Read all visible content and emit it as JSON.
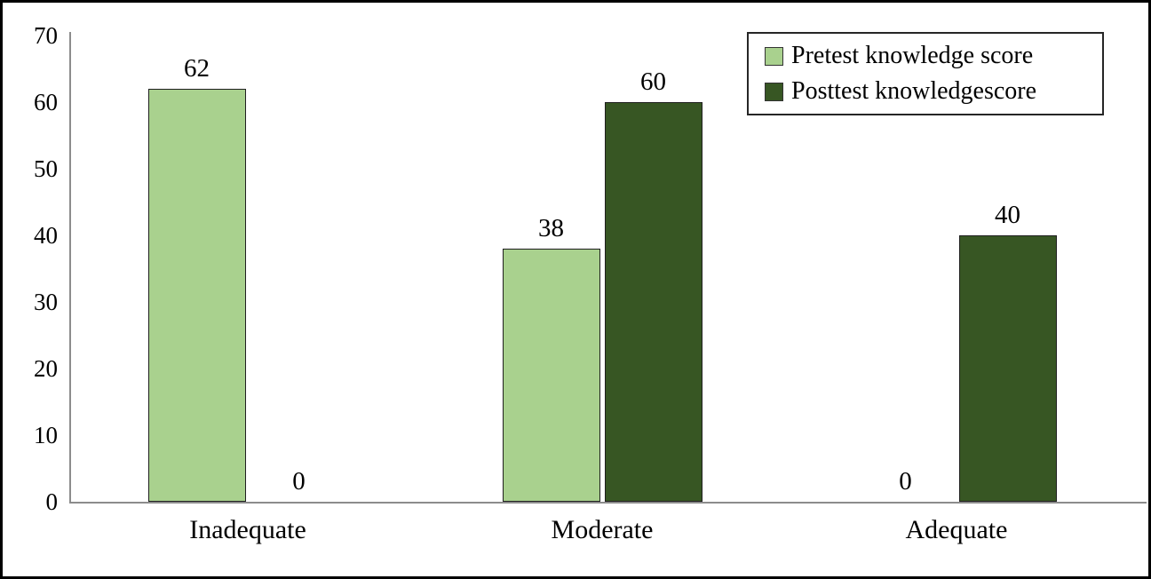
{
  "chart_data": {
    "type": "bar",
    "categories": [
      "Inadequate",
      "Moderate",
      "Adequate"
    ],
    "series": [
      {
        "name": "Pretest knowledge score",
        "color": "#a9d18e",
        "values": [
          62,
          38,
          0
        ]
      },
      {
        "name": "Posttest knowledgescore",
        "color": "#375623",
        "values": [
          0,
          60,
          40
        ]
      }
    ],
    "title": "",
    "xlabel": "",
    "ylabel": "",
    "ylim": [
      0,
      70
    ],
    "yticks": [
      0,
      10,
      20,
      30,
      40,
      50,
      60,
      70
    ],
    "grid": false,
    "data_labels": true,
    "legend_position": "top-right",
    "colors": {
      "axis_line": "#8c8c8c",
      "bar_border": "#1f1f1f",
      "label_text": "#000000",
      "frame_border": "#000000",
      "background": "#ffffff"
    }
  }
}
